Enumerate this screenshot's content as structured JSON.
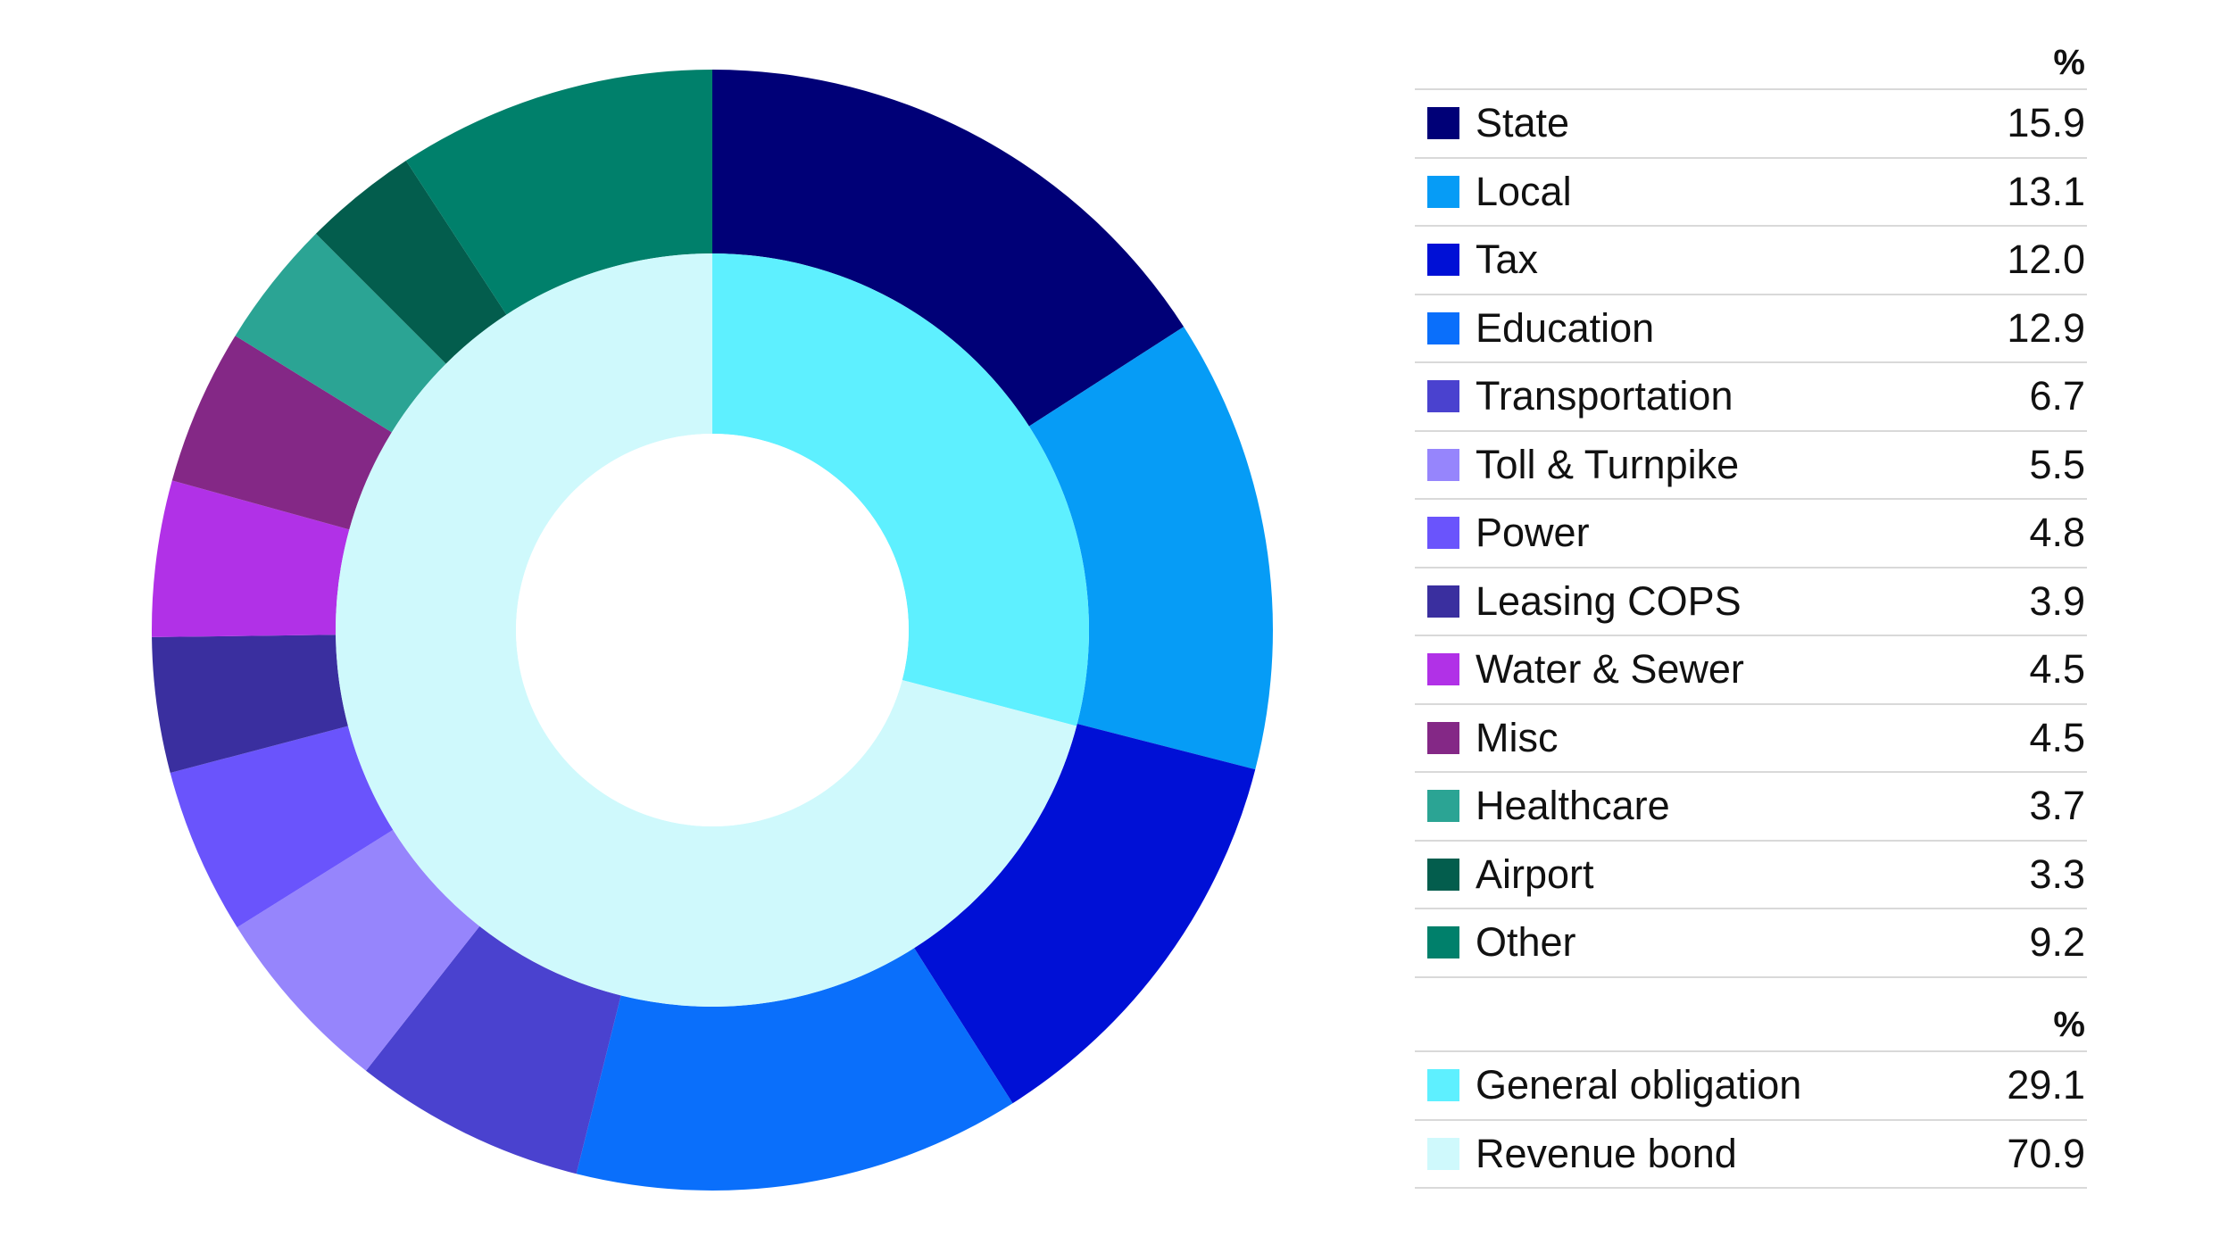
{
  "chart_data": {
    "type": "pie",
    "title": "",
    "unit_header": "%",
    "rings": [
      {
        "name": "",
        "ring": "outer",
        "categories": [
          "State",
          "Local",
          "Tax",
          "Education",
          "Transportation",
          "Toll & Turnpike",
          "Power",
          "Leasing COPS",
          "Water & Sewer",
          "Misc",
          "Healthcare",
          "Airport",
          "Other"
        ],
        "values": [
          15.9,
          13.1,
          12.0,
          12.9,
          6.7,
          5.5,
          4.8,
          3.9,
          4.5,
          4.5,
          3.7,
          3.3,
          9.2
        ],
        "value_labels": [
          "15.9",
          "13.1",
          "12.0",
          "12.9",
          "6.7",
          "5.5",
          "4.8",
          "3.9",
          "4.5",
          "4.5",
          "3.7",
          "3.3",
          "9.2"
        ],
        "colors": [
          "#000077",
          "#069cf6",
          "#0010d6",
          "#0a6ffb",
          "#4a42cf",
          "#9685fc",
          "#6a54fc",
          "#3a2f9f",
          "#b131e7",
          "#842886",
          "#2ba494",
          "#035d4d",
          "#00806b"
        ]
      },
      {
        "name": "",
        "ring": "inner",
        "categories": [
          "General obligation",
          "Revenue bond"
        ],
        "values": [
          29.1,
          70.9
        ],
        "value_labels": [
          "29.1",
          "70.9"
        ],
        "colors": [
          "#5ef0ff",
          "#cff9fc"
        ]
      }
    ],
    "legend": "right",
    "start_angle": "12 o'clock",
    "direction": "clockwise"
  }
}
